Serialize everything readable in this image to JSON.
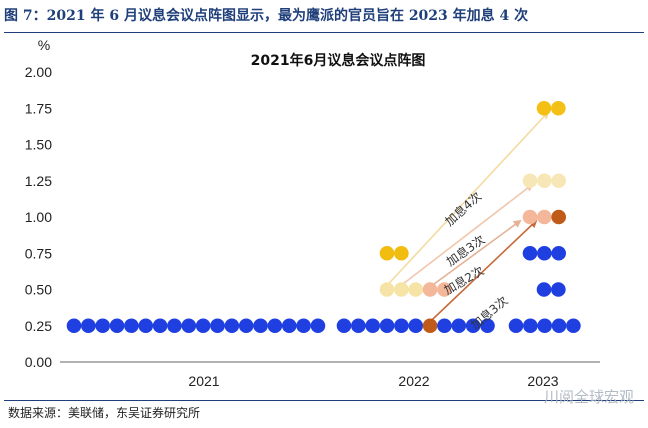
{
  "caption": "图 7：2021 年 6 月议息会议点阵图显示，最为鹰派的官员旨在 2023 年加息 4 次",
  "source": "数据来源：美联储，东吴证券研究所",
  "watermark": "川阅全球宏观",
  "colors": {
    "caption": "#1f3f7a",
    "dot_025": "#1f3fe0",
    "dot_050": "#f6e4a6",
    "dot_075": "#f0bd10",
    "dot_100": "#f4b79a",
    "dot_125": "#f8e7b6",
    "dot_175": "#f4c016",
    "highlight": "#c05a18",
    "arrow_4": "#f4dba0",
    "arrow_3a": "#f0c7ad",
    "arrow_2": "#e4b197",
    "arrow_3b": "#c76a3c"
  },
  "chart_data": {
    "type": "scatter",
    "title": "2021年6月议息会议点阵图",
    "ylabel": "%",
    "ylim": [
      0,
      2.0
    ],
    "yticks": [
      "0.00",
      "0.25",
      "0.50",
      "0.75",
      "1.00",
      "1.25",
      "1.50",
      "1.75",
      "2.00"
    ],
    "categories": [
      "2021",
      "2022",
      "2023"
    ],
    "dots": {
      "2021": [
        {
          "y": 0.25,
          "count": 18,
          "color": "dot_025"
        }
      ],
      "2022": [
        {
          "y": 0.25,
          "count": 11,
          "color": "dot_025",
          "highlight_index": 6
        },
        {
          "y": 0.5,
          "count": 5,
          "color": "dot_050",
          "light_index": [
            3,
            4
          ],
          "light_color": "dot_100"
        },
        {
          "y": 0.75,
          "count": 2,
          "color": "dot_075"
        }
      ],
      "2023": [
        {
          "y": 0.25,
          "count": 5,
          "color": "dot_025"
        },
        {
          "y": 0.5,
          "count": 2,
          "color": "dot_025"
        },
        {
          "y": 0.75,
          "count": 3,
          "color": "dot_025"
        },
        {
          "y": 1.0,
          "count": 3,
          "color": "dot_100",
          "highlight_index": 2
        },
        {
          "y": 1.25,
          "count": 3,
          "color": "dot_125"
        },
        {
          "y": 1.75,
          "count": 2,
          "color": "dot_175"
        }
      ]
    },
    "annotations": [
      "加息4次",
      "加息3次",
      "加息2次",
      "加息3次"
    ]
  }
}
